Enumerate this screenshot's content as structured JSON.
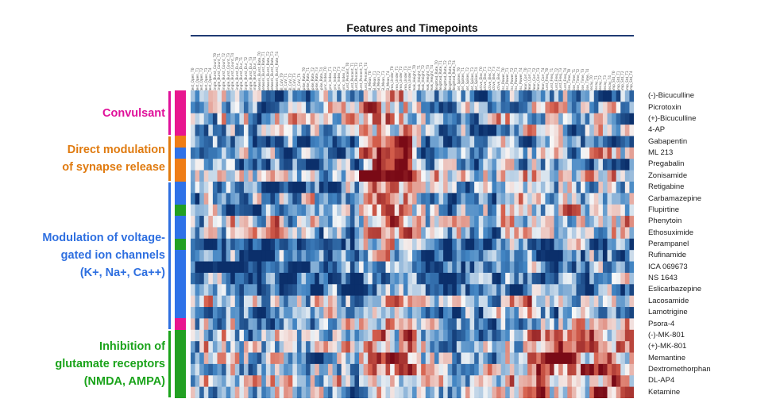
{
  "chart_data": {
    "type": "heatmap",
    "title": "Features and Timepoints",
    "colormap": [
      "#0b2f6b",
      "#f7f7f7",
      "#7a0a16"
    ],
    "rows": [
      "(-)-Bicuculline",
      "Picrotoxin",
      "(+)-Bicuculline",
      "4-AP",
      "Gabapentin",
      "ML 213",
      "Pregabalin",
      "Zonisamide",
      "Retigabine",
      "Carbamazepine",
      "Flupirtine",
      "Phenytoin",
      "Ethosuximide",
      "Perampanel",
      "Rufinamide",
      "ICA 069673",
      "NS 1643",
      "Eslicarbazepine",
      "Lacosamide",
      "Lamotrigine",
      "Psora-4",
      "(-)-MK-801",
      "(+)-MK-801",
      "Memantine",
      "Dextromethorphan",
      "DL-AP4",
      "Ketamine"
    ],
    "row_categories": [
      "Convulsant",
      "Convulsant",
      "Convulsant",
      "Convulsant",
      "Direct modulation of synapse release",
      "Modulation of voltage-gated ion channels (K+, Na+, Ca++)",
      "Direct modulation of synapse release",
      "Direct modulation of synapse release",
      "Modulation of voltage-gated ion channels (K+, Na+, Ca++)",
      "Modulation of voltage-gated ion channels (K+, Na+, Ca++)",
      "Inhibition of glutamate receptors (NMDA, AMPA)",
      "Modulation of voltage-gated ion channels (K+, Na+, Ca++)",
      "Modulation of voltage-gated ion channels (K+, Na+, Ca++)",
      "Inhibition of glutamate receptors (NMDA, AMPA)",
      "Modulation of voltage-gated ion channels (K+, Na+, Ca++)",
      "Modulation of voltage-gated ion channels (K+, Na+, Ca++)",
      "Modulation of voltage-gated ion channels (K+, Na+, Ca++)",
      "Modulation of voltage-gated ion channels (K+, Na+, Ca++)",
      "Modulation of voltage-gated ion channels (K+, Na+, Ca++)",
      "Modulation of voltage-gated ion channels (K+, Na+, Ca++)",
      "Convulsant",
      "Inhibition of glutamate receptors (NMDA, AMPA)",
      "Inhibition of glutamate receptors (NMDA, AMPA)",
      "Inhibition of glutamate receptors (NMDA, AMPA)",
      "Inhibition of glutamate receptors (NMDA, AMPA)",
      "Inhibition of glutamate receptors (NMDA, AMPA)",
      "Inhibition of glutamate receptors (NMDA, AMPA)"
    ],
    "column_count": 100,
    "values_note_visible": "",
    "grid": false,
    "legend": "none"
  },
  "groups": [
    {
      "key": "convulsant",
      "lines": [
        "Convulsant"
      ],
      "color": "#e0109a"
    },
    {
      "key": "synapse",
      "lines": [
        "Direct modulation",
        "of synapse release"
      ],
      "color": "#e07b10"
    },
    {
      "key": "voltage",
      "lines": [
        "Modulation of voltage-",
        "gated ion channels",
        "(K+, Na+, Ca++)"
      ],
      "color": "#2e6fe0"
    },
    {
      "key": "glutamate",
      "lines": [
        "Inhibition of",
        "glutamate receptors",
        "(NMDA, AMPA)"
      ],
      "color": "#1aa31a"
    }
  ],
  "category_colors": {
    "Convulsant": "#e8168f",
    "Direct modulation of synapse release": "#ef7d16",
    "Modulation of voltage-gated ion channels (K+, Na+, Ca++)": "#2f72e8",
    "Inhibition of glutamate receptors (NMDA, AMPA)": "#22a022"
  },
  "column_labels": [
    "Rest_Open_T0",
    "Rest_Open_T1",
    "Rest_Open_T2",
    "Rest_Open_T3",
    "Rest_Open_T4",
    "Single_Burst_Count_T0",
    "Single_Burst_Count_T1",
    "Single_Burst_Count_T2",
    "Single_Burst_Count_T3",
    "Single_Burst_Count_T4",
    "Single_Burst_Dur_T0",
    "Single_Burst_Dur_T1",
    "Single_Burst_Dur_T2",
    "Single_Burst_Dur_T3",
    "Single_Burst_Dur_T4",
    "Network_Burst_Rate_T0",
    "Network_Burst_Rate_T1",
    "Network_Burst_Rate_T2",
    "Network_Burst_Rate_T3",
    "Network_Burst_Rate_T4",
    "IBI_CoV_T0",
    "IBI_CoV_T1",
    "IBI_CoV_T2",
    "IBI_CoV_T3",
    "IBI_CoV_T4",
    "Spike_Rate_T0",
    "Spike_Rate_T1",
    "Spike_Rate_T2",
    "Spike_Rate_T3",
    "Spike_Rate_T4",
    "Sync_Index_T0",
    "Sync_Index_T1",
    "Sync_Index_T2",
    "Sync_Index_T3",
    "Sync_Index_T4",
    "Burst_Percent_T0",
    "Burst_Percent_T1",
    "Burst_Percent_T2",
    "Burst_Percent_T3",
    "Burst_Percent_T4",
    "ISI_Mean_T0",
    "ISI_Mean_T1",
    "ISI_Mean_T2",
    "ISI_Mean_T3",
    "ISI_Mean_T4",
    "Area_Under_T0",
    "Area_Under_T1",
    "Area_Under_T2",
    "Area_Under_T3",
    "Area_Under_T4",
    "Peak_Height_T0",
    "Peak_Height_T1",
    "Peak_Height_T2",
    "Peak_Height_T3",
    "Peak_Height_T4",
    "Weighted_Rate_T0",
    "Weighted_Rate_T1",
    "Weighted_Rate_T2",
    "Weighted_Rate_T3",
    "Weighted_Rate_T4",
    "Net_Spikes_T0",
    "Net_Spikes_T1",
    "Net_Spikes_T2",
    "Net_Spikes_T3",
    "Net_Spikes_T4",
    "Active_Elec_T0",
    "Active_Elec_T1",
    "Active_Elec_T2",
    "Active_Elec_T3",
    "Active_Elec_T4",
    "Osc_Power_T0",
    "Osc_Power_T1",
    "Osc_Power_T2",
    "Osc_Power_T3",
    "Osc_Power_T4",
    "Mean_Corr_T0",
    "Mean_Corr_T1",
    "Mean_Corr_T2",
    "Mean_Corr_T3",
    "Mean_Corr_T4",
    "Burst_Freq_T0",
    "Burst_Freq_T1",
    "Burst_Freq_T2",
    "Burst_Freq_T3",
    "Burst_Freq_T4",
    "Rise_Time_T0",
    "Rise_Time_T1",
    "Rise_Time_T2",
    "Rise_Time_T3",
    "Rise_Time_T4",
    "Decay_T0",
    "Decay_T1",
    "Decay_T2",
    "Decay_T3",
    "Decay_T4",
    "Amp_Std_T0",
    "Amp_Std_T1",
    "Amp_Std_T2",
    "Amp_Std_T3",
    "Amp_Std_T4"
  ]
}
